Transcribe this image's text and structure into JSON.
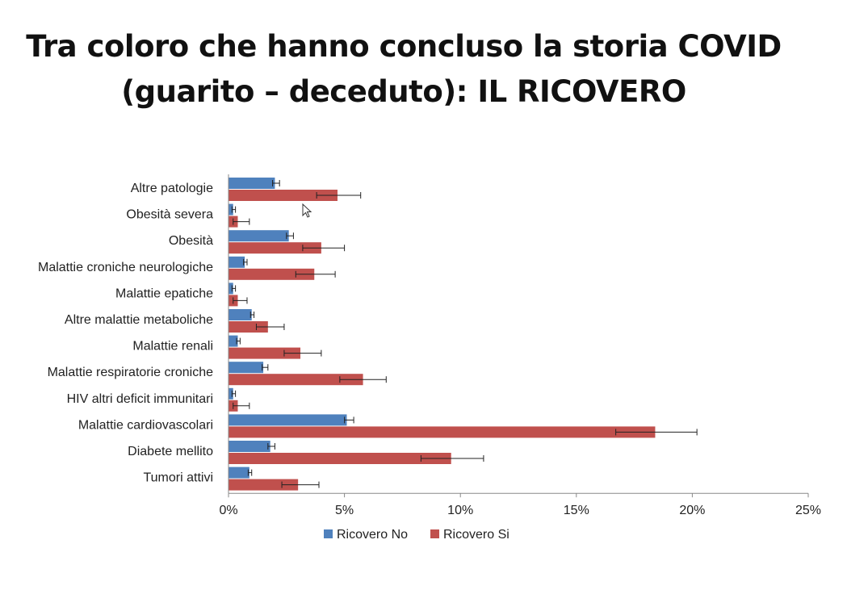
{
  "slide": {
    "title_line1": "Tra coloro che hanno concluso la storia COVID",
    "title_line2": "(guarito – deceduto): IL RICOVERO"
  },
  "chart_data": {
    "type": "bar",
    "orientation": "horizontal",
    "categories": [
      "Altre patologie",
      "Obesità severa",
      "Obesità",
      "Malattie croniche neurologiche",
      "Malattie epatiche",
      "Altre malattie metaboliche",
      "Malattie renali",
      "Malattie respiratorie croniche",
      "HIV altri deficit immunitari",
      "Malattie cardiovascolari",
      "Diabete mellito",
      "Tumori attivi"
    ],
    "series": [
      {
        "name": "Ricovero No",
        "color": "#4f81bd",
        "values": [
          2.0,
          0.2,
          2.6,
          0.7,
          0.2,
          1.0,
          0.4,
          1.5,
          0.2,
          5.1,
          1.8,
          0.9
        ],
        "err_low": [
          1.9,
          0.15,
          2.5,
          0.65,
          0.15,
          0.95,
          0.35,
          1.45,
          0.15,
          5.0,
          1.7,
          0.85
        ],
        "err_high": [
          2.2,
          0.3,
          2.8,
          0.8,
          0.3,
          1.1,
          0.5,
          1.7,
          0.3,
          5.4,
          2.0,
          1.0
        ]
      },
      {
        "name": "Ricovero Si",
        "color": "#c0504d",
        "values": [
          4.7,
          0.4,
          4.0,
          3.7,
          0.4,
          1.7,
          3.1,
          5.8,
          0.4,
          18.4,
          9.6,
          3.0
        ],
        "err_low": [
          3.8,
          0.2,
          3.2,
          2.9,
          0.2,
          1.2,
          2.4,
          4.8,
          0.2,
          16.7,
          8.3,
          2.3
        ],
        "err_high": [
          5.7,
          0.9,
          5.0,
          4.6,
          0.8,
          2.4,
          4.0,
          6.8,
          0.9,
          20.2,
          11.0,
          3.9
        ]
      }
    ],
    "xlim": [
      0,
      25
    ],
    "xticks": [
      "0%",
      "5%",
      "10%",
      "15%",
      "20%",
      "25%"
    ],
    "xtick_values": [
      0,
      5,
      10,
      15,
      20,
      25
    ],
    "xlabel": "",
    "ylabel": "",
    "grid": false,
    "legend_position": "bottom"
  }
}
